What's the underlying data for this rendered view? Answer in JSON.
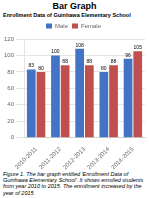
{
  "chart_data": {
    "type": "bar",
    "title": "Bar Graph",
    "subtitle": "Enrollment Data of Guinhawa Elementary School",
    "caption": "Figure 1. The bar graph entitled 'Enrollment Data of Guinhawa Elementary School'. It shows enrolled students from year 2010 to 2015. The enrollment increased by the year of 2015.",
    "categories": [
      "2010-2011",
      "2011-2012",
      "2012-2013",
      "2013-2014",
      "2014-2015"
    ],
    "series": [
      {
        "name": "Male",
        "color": "#4472C4",
        "values": [
          83,
          100,
          108,
          80,
          96
        ]
      },
      {
        "name": "Female",
        "color": "#C0504D",
        "values": [
          80,
          88,
          88,
          88,
          105
        ]
      }
    ],
    "ylim": [
      0,
      120
    ],
    "yticks": [
      0,
      20,
      40,
      60,
      80,
      100,
      120
    ],
    "grid": true,
    "legend": "top",
    "data_labels": true
  }
}
